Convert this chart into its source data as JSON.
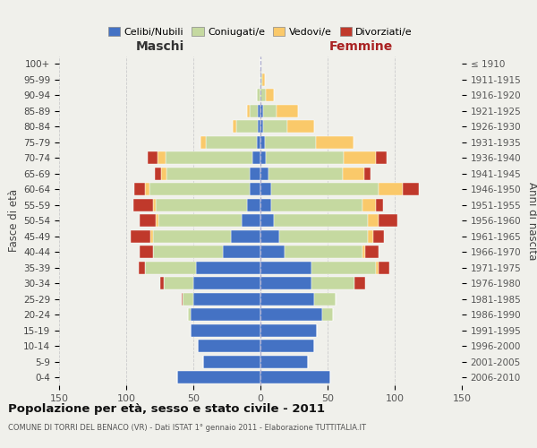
{
  "age_groups": [
    "0-4",
    "5-9",
    "10-14",
    "15-19",
    "20-24",
    "25-29",
    "30-34",
    "35-39",
    "40-44",
    "45-49",
    "50-54",
    "55-59",
    "60-64",
    "65-69",
    "70-74",
    "75-79",
    "80-84",
    "85-89",
    "90-94",
    "95-99",
    "100+"
  ],
  "birth_years": [
    "2006-2010",
    "2001-2005",
    "1996-2000",
    "1991-1995",
    "1986-1990",
    "1981-1985",
    "1976-1980",
    "1971-1975",
    "1966-1970",
    "1961-1965",
    "1956-1960",
    "1951-1955",
    "1946-1950",
    "1941-1945",
    "1936-1940",
    "1931-1935",
    "1926-1930",
    "1921-1925",
    "1916-1920",
    "1911-1915",
    "≤ 1910"
  ],
  "maschi": {
    "celibi": [
      62,
      43,
      47,
      52,
      52,
      50,
      50,
      48,
      28,
      22,
      14,
      10,
      8,
      8,
      6,
      3,
      2,
      2,
      0,
      0,
      0
    ],
    "coniugati": [
      0,
      0,
      0,
      0,
      2,
      8,
      22,
      38,
      52,
      58,
      62,
      68,
      75,
      62,
      65,
      38,
      16,
      6,
      3,
      0,
      0
    ],
    "vedovi": [
      0,
      0,
      0,
      0,
      0,
      0,
      0,
      0,
      0,
      2,
      2,
      2,
      3,
      4,
      6,
      4,
      3,
      2,
      0,
      0,
      0
    ],
    "divorziati": [
      0,
      0,
      0,
      0,
      0,
      1,
      3,
      5,
      10,
      15,
      12,
      15,
      8,
      5,
      7,
      0,
      0,
      0,
      0,
      0,
      0
    ]
  },
  "femmine": {
    "nubili": [
      52,
      35,
      40,
      42,
      46,
      40,
      38,
      38,
      18,
      14,
      10,
      8,
      8,
      6,
      4,
      3,
      2,
      2,
      0,
      0,
      0
    ],
    "coniugate": [
      0,
      0,
      0,
      0,
      8,
      16,
      32,
      48,
      58,
      66,
      70,
      68,
      80,
      55,
      58,
      38,
      18,
      10,
      4,
      1,
      0
    ],
    "vedove": [
      0,
      0,
      0,
      0,
      0,
      0,
      0,
      2,
      2,
      4,
      8,
      10,
      18,
      16,
      24,
      28,
      20,
      16,
      6,
      2,
      0
    ],
    "divorziate": [
      0,
      0,
      0,
      0,
      0,
      0,
      8,
      8,
      10,
      8,
      14,
      5,
      12,
      5,
      8,
      0,
      0,
      0,
      0,
      0,
      0
    ]
  },
  "colors": {
    "celibi": "#4472C4",
    "coniugati": "#C5D9A0",
    "vedovi": "#FAC96A",
    "divorziati": "#C0392B"
  },
  "legend_labels": [
    "Celibi/Nubili",
    "Coniugati/e",
    "Vedovi/e",
    "Divorziati/e"
  ],
  "title": "Popolazione per età, sesso e stato civile - 2011",
  "subtitle": "COMUNE DI TORRI DEL BENACO (VR) - Dati ISTAT 1° gennaio 2011 - Elaborazione TUTTITALIA.IT",
  "xlabel_left": "Maschi",
  "xlabel_right": "Femmine",
  "ylabel_left": "Fasce di età",
  "ylabel_right": "Anni di nascita",
  "xlim": 150,
  "background_color": "#f0f0eb",
  "grid_color": "#cccccc"
}
